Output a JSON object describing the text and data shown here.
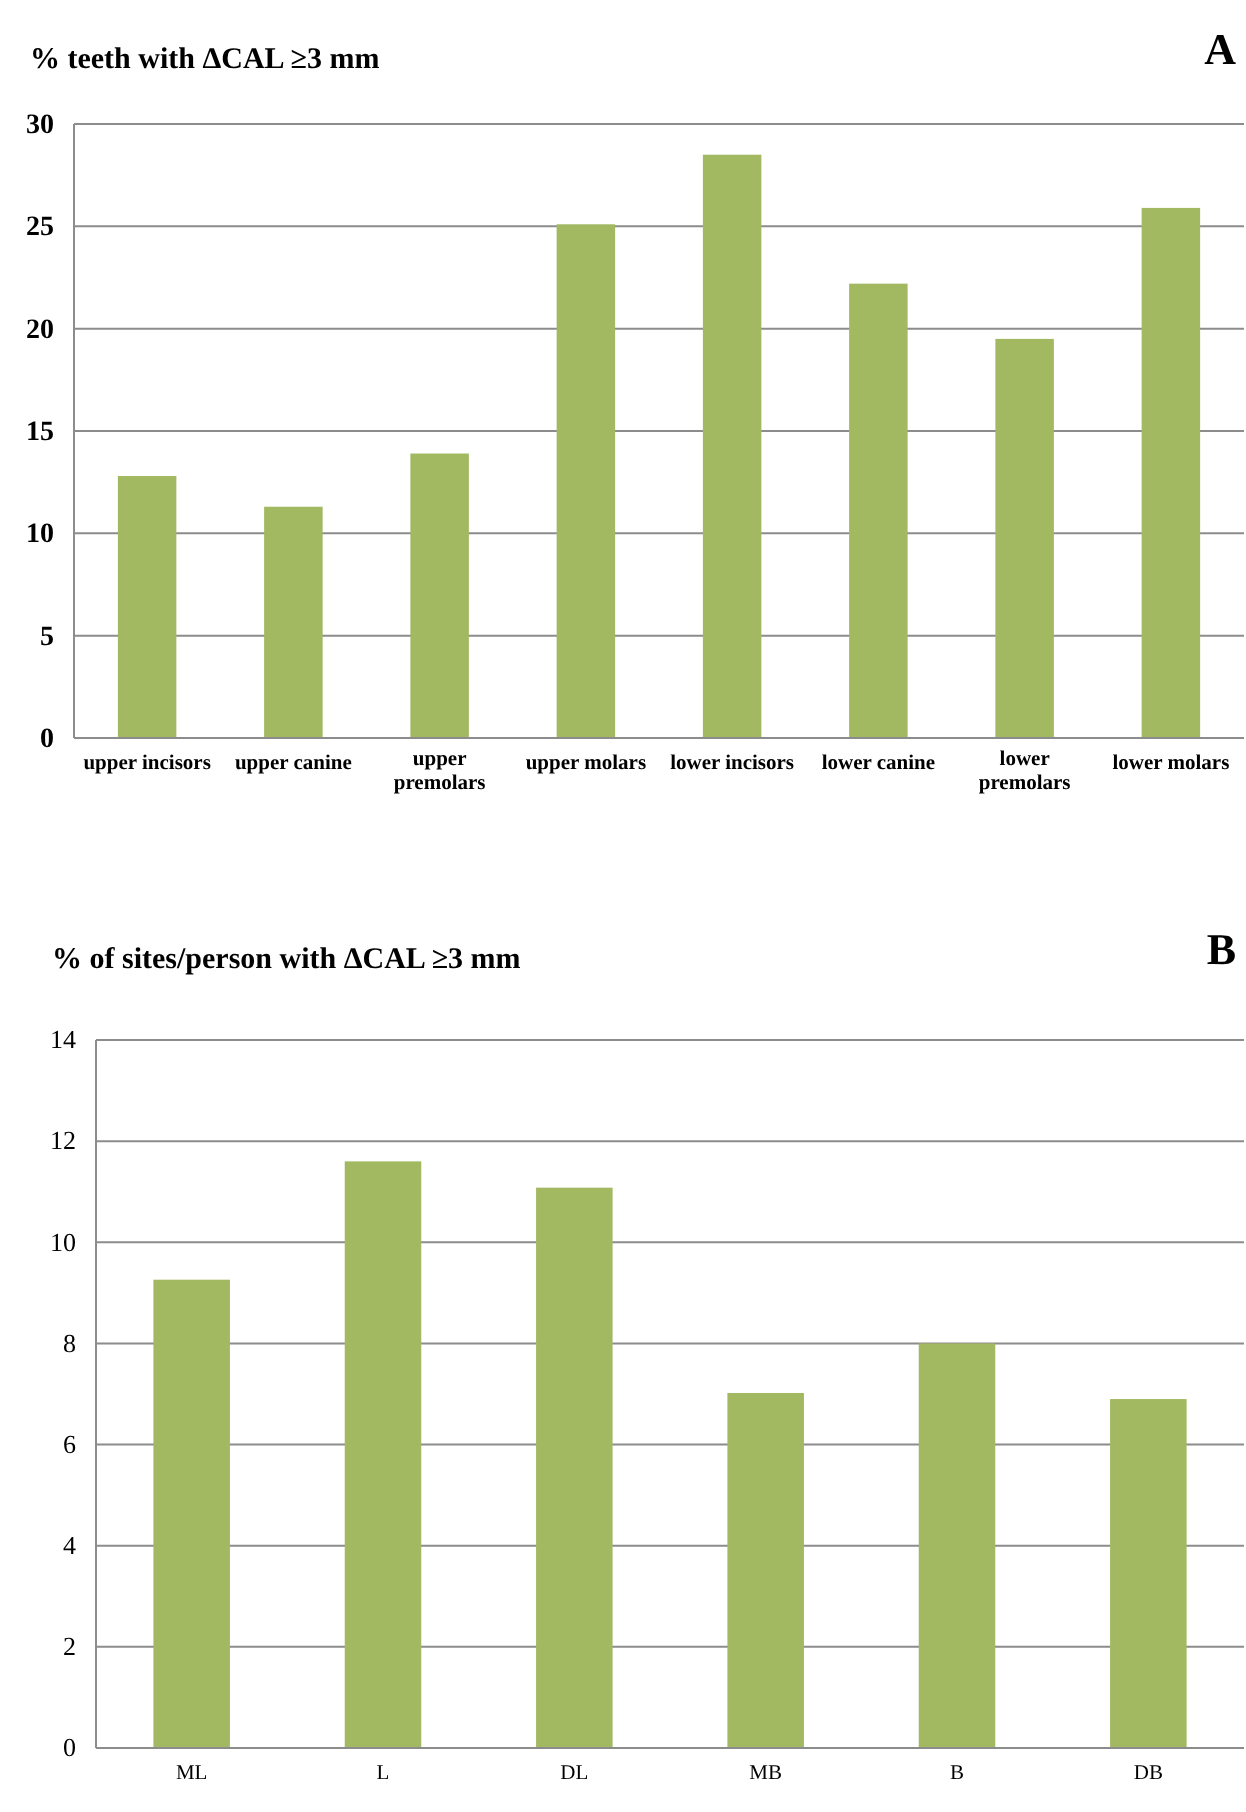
{
  "chart_data": [
    {
      "type": "bar",
      "title": "% teeth with ΔCAL ≥3 mm",
      "annotations": [
        "A"
      ],
      "categories": [
        "upper incisors",
        "upper canine",
        "upper premolars",
        "upper molars",
        "lower incisors",
        "lower canine",
        "lower premolars",
        "lower molars"
      ],
      "values": [
        12.8,
        11.3,
        13.9,
        25.1,
        28.5,
        22.2,
        19.5,
        25.9
      ],
      "color": "#a2b962",
      "ylim": [
        0,
        30
      ],
      "yticks": [
        0,
        5,
        10,
        15,
        20,
        25,
        30
      ],
      "grid": "y"
    },
    {
      "type": "bar",
      "title": "% of sites/person with ΔCAL ≥3 mm",
      "annotations": [
        "B"
      ],
      "categories": [
        "ML",
        "L",
        "DL",
        "MB",
        "B",
        "DB"
      ],
      "values": [
        9.26,
        11.6,
        11.08,
        7.02,
        8.0,
        6.9
      ],
      "color": "#a2b962",
      "ylim": [
        0,
        14
      ],
      "yticks": [
        0,
        2,
        4,
        6,
        8,
        10,
        12,
        14
      ],
      "grid": "y"
    }
  ]
}
